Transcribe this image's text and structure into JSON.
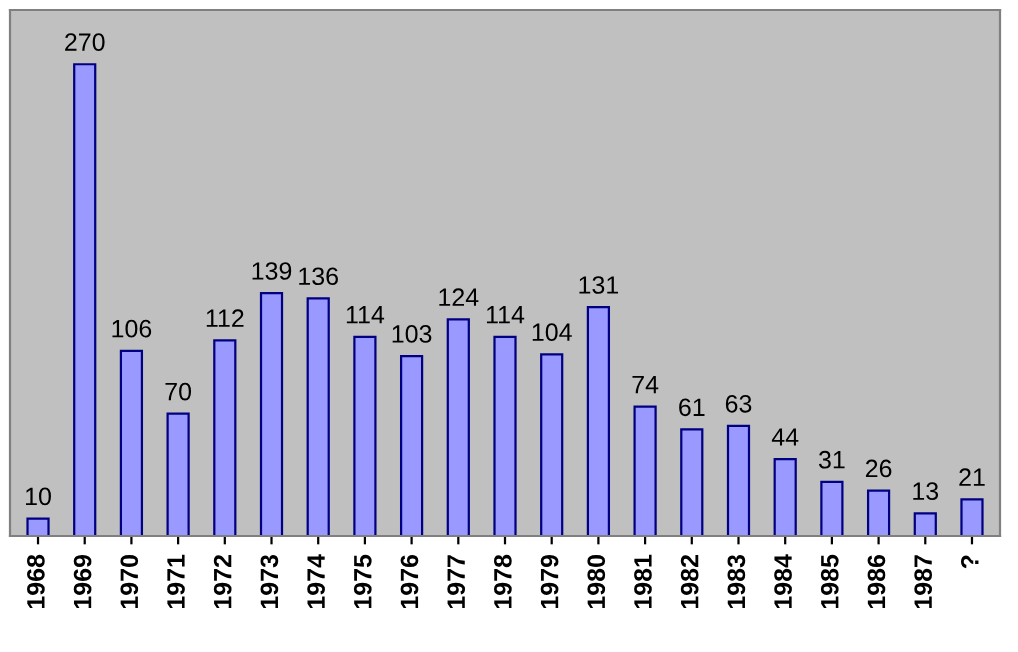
{
  "chart_data": {
    "type": "bar",
    "categories": [
      "1968",
      "1969",
      "1970",
      "1971",
      "1972",
      "1973",
      "1974",
      "1975",
      "1976",
      "1977",
      "1978",
      "1979",
      "1980",
      "1981",
      "1982",
      "1983",
      "1984",
      "1985",
      "1986",
      "1987",
      "?"
    ],
    "values": [
      10,
      270,
      106,
      70,
      112,
      139,
      136,
      114,
      103,
      124,
      114,
      104,
      131,
      74,
      61,
      63,
      44,
      31,
      26,
      13,
      21
    ],
    "color": "#9999ff",
    "data_labels": true,
    "grid": false,
    "legend": false
  }
}
